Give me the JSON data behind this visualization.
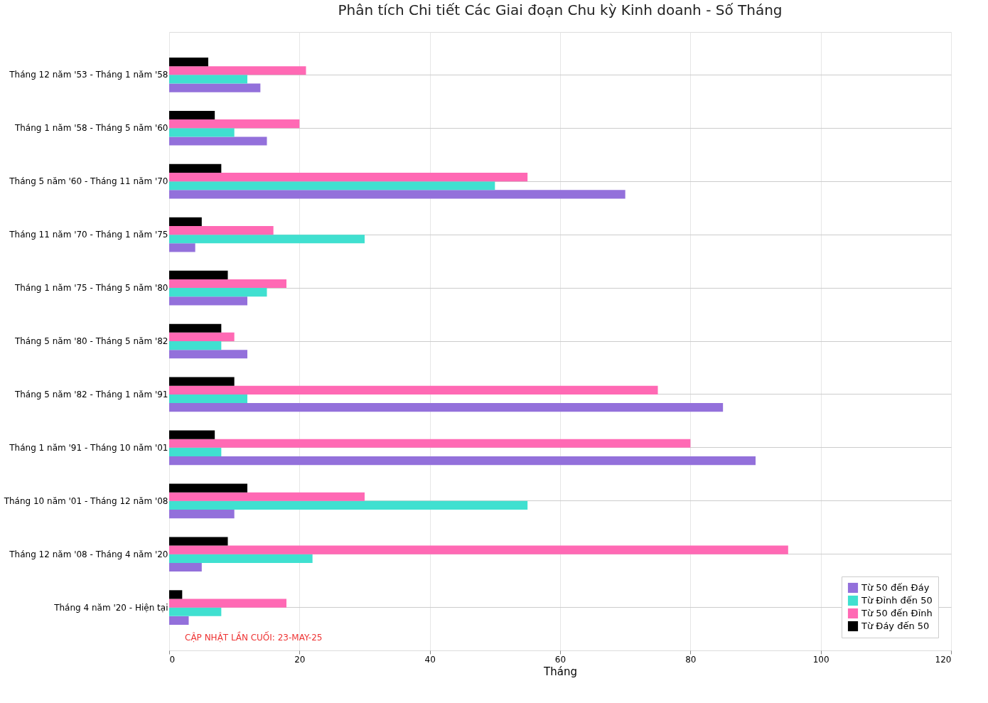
{
  "chart_data": {
    "type": "bar",
    "orientation": "horizontal",
    "title": "Phân tích Chi tiết Các Giai đoạn Chu kỳ Kinh doanh - Số Tháng",
    "xlabel": "Tháng",
    "categories": [
      "Tháng 12 năm '53 - Tháng 1 năm '58",
      "Tháng 1 năm '58 - Tháng 5 năm '60",
      "Tháng 5 năm '60 - Tháng 11 năm '70",
      "Tháng 11 năm '70 - Tháng 1 năm '75",
      "Tháng 1 năm '75 - Tháng 5 năm '80",
      "Tháng 5 năm '80 - Tháng 5 năm '82",
      "Tháng 5 năm '82 - Tháng 1 năm '91",
      "Tháng 1 năm '91 - Tháng 10 năm '01",
      "Tháng 10 năm '01 - Tháng 12 năm '08",
      "Tháng 12 năm '08 - Tháng 4 năm '20",
      "Tháng 4 năm '20 - Hiện tại"
    ],
    "series": [
      {
        "name": "Từ 50 đến Đáy",
        "color": "#9370db",
        "values": [
          14,
          15,
          70,
          4,
          12,
          12,
          85,
          90,
          10,
          5,
          3
        ]
      },
      {
        "name": "Từ Đỉnh đến 50",
        "color": "#40e0d0",
        "values": [
          12,
          10,
          50,
          30,
          15,
          8,
          12,
          8,
          55,
          22,
          8
        ]
      },
      {
        "name": "Từ 50 đến Đỉnh",
        "color": "#ff69b4",
        "values": [
          21,
          20,
          55,
          16,
          18,
          10,
          75,
          80,
          30,
          95,
          18
        ]
      },
      {
        "name": "Từ Đáy đến 50",
        "color": "#000000",
        "values": [
          6,
          7,
          8,
          5,
          9,
          8,
          10,
          7,
          12,
          9,
          2
        ]
      }
    ],
    "xlim": [
      0,
      120
    ],
    "xticks": [
      0,
      20,
      40,
      60,
      80,
      100,
      120
    ],
    "grid": true,
    "legend": "bottom right",
    "annotations": [
      "CẬP NHẬT LẦN CUỐI: 23-MAY-25"
    ]
  }
}
